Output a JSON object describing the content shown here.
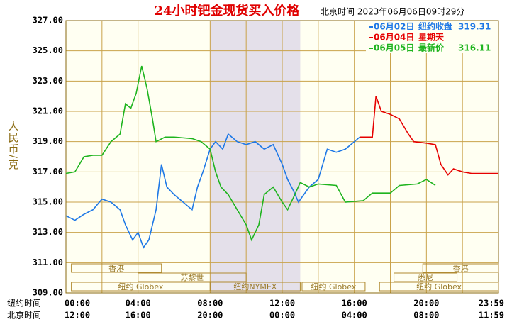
{
  "chart_data": {
    "type": "line",
    "title": "24小时钯金现货买入价格",
    "subtitle": "北京时间  2023年06月06日09时29分",
    "ylabel": "人民币/克",
    "xlim": [
      0,
      24
    ],
    "ylim": [
      309,
      327
    ],
    "yticks": [
      {
        "value": 309,
        "label": "309.00"
      },
      {
        "value": 311,
        "label": "311.00"
      },
      {
        "value": 313,
        "label": "313.00"
      },
      {
        "value": 315,
        "label": "315.00"
      },
      {
        "value": 317,
        "label": "317.00"
      },
      {
        "value": 319,
        "label": "319.00"
      },
      {
        "value": 321,
        "label": "321.00"
      },
      {
        "value": 323,
        "label": "323.00"
      },
      {
        "value": 325,
        "label": "325.00"
      },
      {
        "value": 327,
        "label": "327.00"
      }
    ],
    "xticks": [
      {
        "value": 0,
        "label": "00:00"
      },
      {
        "value": 4,
        "label": "04:00"
      },
      {
        "value": 8,
        "label": "08:00"
      },
      {
        "value": 12,
        "label": "12:00"
      },
      {
        "value": 16,
        "label": "16:00"
      },
      {
        "value": 20,
        "label": "20:00"
      },
      {
        "value": 24,
        "label": "23:59"
      }
    ],
    "xticks_row2": [
      "12:00",
      "16:00",
      "20:00",
      "00:00",
      "04:00",
      "08:00",
      "11:59"
    ],
    "xaxis_row1_name": "纽约时间",
    "xaxis_row2_name": "北京时间",
    "xminor": [
      2,
      6,
      10,
      14,
      18,
      22
    ],
    "grid": true,
    "shade": [
      8,
      13
    ],
    "sessions": [
      {
        "label": "香港",
        "start": 0.3,
        "end": 5.3,
        "row": 0
      },
      {
        "label": "苏黎世",
        "start": 4.0,
        "end": 10.0,
        "row": 1
      },
      {
        "label": "纽约 Globex",
        "start": 0.3,
        "end": 8.0,
        "row": 2
      },
      {
        "label": "纽约NYMEX",
        "start": 8.0,
        "end": 13.0,
        "row": 2
      },
      {
        "label": "纽约 Globex",
        "start": 13.1,
        "end": 16.6,
        "row": 2
      },
      {
        "label": "悉尼",
        "start": 18.2,
        "end": 21.7,
        "row": 1
      },
      {
        "label": "香港",
        "start": 19.8,
        "end": 24,
        "row": 0
      },
      {
        "label": "纽约 Globex",
        "start": 17.4,
        "end": 24,
        "row": 2
      }
    ],
    "series": [
      {
        "name": "06月02日",
        "color": "#1e78e6",
        "note": "纽约收盘",
        "legend_value": 319.31,
        "x": [
          0,
          0.5,
          1,
          1.5,
          2,
          2.5,
          3,
          3.3,
          3.7,
          4,
          4.3,
          4.6,
          5,
          5.3,
          5.6,
          6,
          6.5,
          7,
          7.3,
          7.6,
          8,
          8.3,
          8.7,
          9,
          9.5,
          10,
          10.5,
          11,
          11.5,
          12,
          12.3,
          12.6,
          12.9,
          13.2,
          13.5,
          14,
          14.5,
          15,
          15.5,
          16,
          16.3
        ],
        "values": [
          314.1,
          313.8,
          314.2,
          314.5,
          315.2,
          315.0,
          314.5,
          313.5,
          312.5,
          313.0,
          312.0,
          312.5,
          314.5,
          317.5,
          316.0,
          315.5,
          315.0,
          314.5,
          316.0,
          317.0,
          318.5,
          319.0,
          318.5,
          319.5,
          319.0,
          318.8,
          319.0,
          318.5,
          318.8,
          317.5,
          316.5,
          315.8,
          315.0,
          315.5,
          316.0,
          316.5,
          318.5,
          318.3,
          318.5,
          319.0,
          319.3
        ]
      },
      {
        "name": "06月04日",
        "color": "#e60000",
        "note": "星期天",
        "x": [
          16.3,
          17,
          17.2,
          17.5,
          18,
          18.5,
          19,
          19.3,
          20,
          20.5,
          20.8,
          21.2,
          21.5,
          22,
          22.5,
          24
        ],
        "values": [
          319.3,
          319.3,
          322.0,
          321.0,
          320.8,
          320.5,
          319.5,
          319.0,
          318.9,
          318.8,
          317.5,
          316.8,
          317.2,
          317.0,
          316.9,
          316.9
        ]
      },
      {
        "name": "06月05日",
        "color": "#1eb41e",
        "note": "最新价",
        "legend_value": 316.11,
        "x": [
          0,
          0.5,
          1,
          1.5,
          2,
          2.5,
          3,
          3.3,
          3.6,
          3.9,
          4.2,
          4.5,
          4.8,
          5,
          5.5,
          6,
          7,
          7.5,
          8,
          8.3,
          8.6,
          9,
          9.5,
          10,
          10.3,
          10.7,
          11,
          11.5,
          12,
          12.3,
          12.7,
          13,
          13.5,
          14,
          15,
          15.5,
          16.5,
          17,
          18,
          18.5,
          19.5,
          20,
          20.5
        ],
        "values": [
          316.9,
          317.0,
          318.0,
          318.1,
          318.1,
          319.0,
          319.5,
          321.5,
          321.2,
          322.2,
          324.0,
          322.5,
          320.5,
          319.0,
          319.3,
          319.3,
          319.2,
          319.0,
          318.5,
          317.0,
          316.0,
          315.5,
          314.5,
          313.5,
          312.5,
          313.5,
          315.5,
          316.0,
          315.0,
          314.5,
          315.5,
          316.3,
          316.0,
          316.2,
          316.1,
          315.0,
          315.1,
          315.6,
          315.6,
          316.1,
          316.2,
          316.5,
          316.11
        ]
      }
    ]
  }
}
